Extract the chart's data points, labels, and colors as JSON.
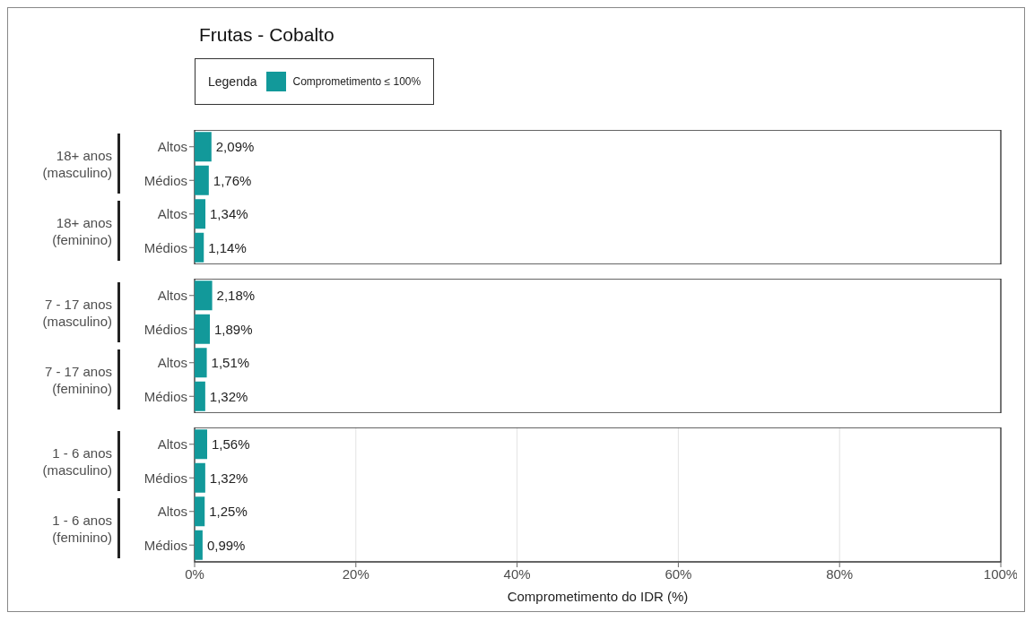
{
  "chart_data": [
    {
      "type": "bar",
      "orientation": "horizontal",
      "title": "Frutas - Cobalto",
      "legend_title": "Legenda",
      "legend": "top left",
      "categories": [
        "Altos",
        "Médios",
        "Altos",
        "Médios"
      ],
      "annotations": [
        "18+ anos (masculino)",
        "18+ anos (feminino)"
      ],
      "series": [
        {
          "name": "Comprometimento ≤ 100%",
          "color": "#12999a",
          "values": [
            2.09,
            1.76,
            1.34,
            1.14
          ],
          "value_labels": [
            "2,09%",
            "1,76%",
            "1,34%",
            "1,14%"
          ]
        }
      ],
      "xlim": [
        0,
        100
      ],
      "grid": "x",
      "tick_labels": "y"
    },
    {
      "type": "bar",
      "orientation": "horizontal",
      "categories": [
        "Altos",
        "Médios",
        "Altos",
        "Médios"
      ],
      "annotations": [
        "7 - 17 anos (masculino)",
        "7 - 17 anos (feminino)"
      ],
      "series": [
        {
          "color": "#12999a",
          "values": [
            2.18,
            1.89,
            1.51,
            1.32
          ],
          "value_labels": [
            "2,18%",
            "1,89%",
            "1,51%",
            "1,32%"
          ]
        }
      ],
      "xlim": [
        0,
        100
      ],
      "grid": "x",
      "tick_labels": "y"
    },
    {
      "type": "bar",
      "orientation": "horizontal",
      "xlabel": "Comprometimento do IDR (%)",
      "categories": [
        "Altos",
        "Médios",
        "Altos",
        "Médios"
      ],
      "annotations": [
        "1 - 6 anos (masculino)",
        "1 - 6 anos (feminino)"
      ],
      "series": [
        {
          "color": "#12999a",
          "values": [
            1.56,
            1.32,
            1.25,
            0.99
          ],
          "value_labels": [
            "1,56%",
            "1,32%",
            "1,25%",
            "0,99%"
          ]
        }
      ],
      "xlim": [
        0,
        100
      ],
      "xticks": [
        {
          "value": 0,
          "label": "0%"
        },
        {
          "value": 20,
          "label": "20%"
        },
        {
          "value": 40,
          "label": "40%"
        },
        {
          "value": 60,
          "label": "60%"
        },
        {
          "value": 80,
          "label": "80%"
        },
        {
          "value": 100,
          "label": "100%"
        }
      ],
      "grid": "x"
    }
  ]
}
